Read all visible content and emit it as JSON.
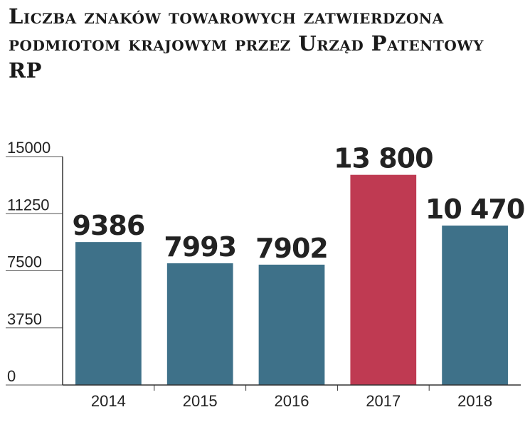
{
  "chart_data": {
    "type": "bar",
    "title": "Liczba znaków towarowych zatwierdzona podmiotom krajowym przez Urząd Patentowy RP",
    "categories": [
      "2014",
      "2015",
      "2016",
      "2017",
      "2018"
    ],
    "values": [
      9386,
      7993,
      7902,
      13800,
      10470
    ],
    "value_labels": [
      "9386",
      "7993",
      "7902",
      "13 800",
      "10 470"
    ],
    "colors": [
      "#3e7189",
      "#3e7189",
      "#3e7189",
      "#bf3a52",
      "#3e7189"
    ],
    "ylim": [
      0,
      15000
    ],
    "yticks": [
      0,
      3750,
      7500,
      11250,
      15000
    ],
    "grid": false
  }
}
